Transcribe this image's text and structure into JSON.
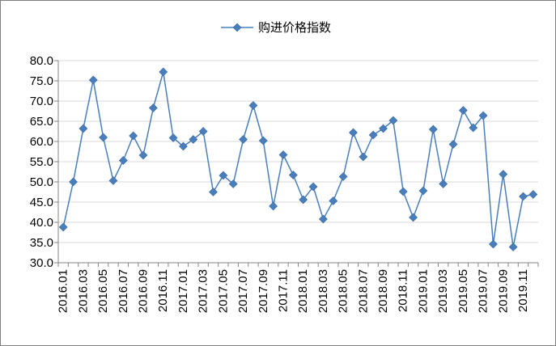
{
  "chart_data": {
    "type": "line",
    "title": "",
    "xlabel": "",
    "ylabel": "",
    "ylim": [
      30.0,
      80.0
    ],
    "y_ticks": [
      "30.0",
      "35.0",
      "40.0",
      "45.0",
      "50.0",
      "55.0",
      "60.0",
      "65.0",
      "70.0",
      "75.0",
      "80.0"
    ],
    "grid": true,
    "legend_position": "top-center",
    "marker": "diamond",
    "series_color": "#4a7ebb",
    "x": [
      "2016.01",
      "2016.02",
      "2016.03",
      "2016.04",
      "2016.05",
      "2016.06",
      "2016.07",
      "2016.08",
      "2016.09",
      "2016.10",
      "2016.11",
      "2016.12",
      "2017.01",
      "2017.02",
      "2017.03",
      "2017.04",
      "2017.05",
      "2017.06",
      "2017.07",
      "2017.08",
      "2017.09",
      "2017.10",
      "2017.11",
      "2017.12",
      "2018.01",
      "2018.02",
      "2018.03",
      "2018.04",
      "2018.05",
      "2018.06",
      "2018.07",
      "2018.08",
      "2018.09",
      "2018.10",
      "2018.11",
      "2018.12",
      "2019.01",
      "2019.02",
      "2019.03",
      "2019.04",
      "2019.05",
      "2019.06",
      "2019.07",
      "2019.08",
      "2019.09",
      "2019.10",
      "2019.11",
      "2019.12"
    ],
    "x_tick_labels": [
      "2016.01",
      "2016.03",
      "2016.05",
      "2016.07",
      "2016.09",
      "2016.11",
      "2017.01",
      "2017.03",
      "2017.05",
      "2017.07",
      "2017.09",
      "2017.11",
      "2018.01",
      "2018.03",
      "2018.05",
      "2018.07",
      "2018.09",
      "2018.11",
      "2019.01",
      "2019.03",
      "2019.05",
      "2019.07",
      "2019.09",
      "2019.11"
    ],
    "series": [
      {
        "name": "购进价格指数",
        "values": [
          38.8,
          50.0,
          63.2,
          75.2,
          61.0,
          50.3,
          55.3,
          61.4,
          56.6,
          68.3,
          77.2,
          60.9,
          58.8,
          60.5,
          62.5,
          47.5,
          51.6,
          49.5,
          60.5,
          68.9,
          60.2,
          44.0,
          56.7,
          51.7,
          45.6,
          48.8,
          40.8,
          45.3,
          51.3,
          62.2,
          56.2,
          61.6,
          63.2,
          65.2,
          47.6,
          41.2,
          47.8,
          63.0,
          49.5,
          59.3,
          67.7,
          63.4,
          66.4,
          34.6,
          51.9,
          33.9,
          46.4,
          46.9
        ]
      }
    ]
  }
}
